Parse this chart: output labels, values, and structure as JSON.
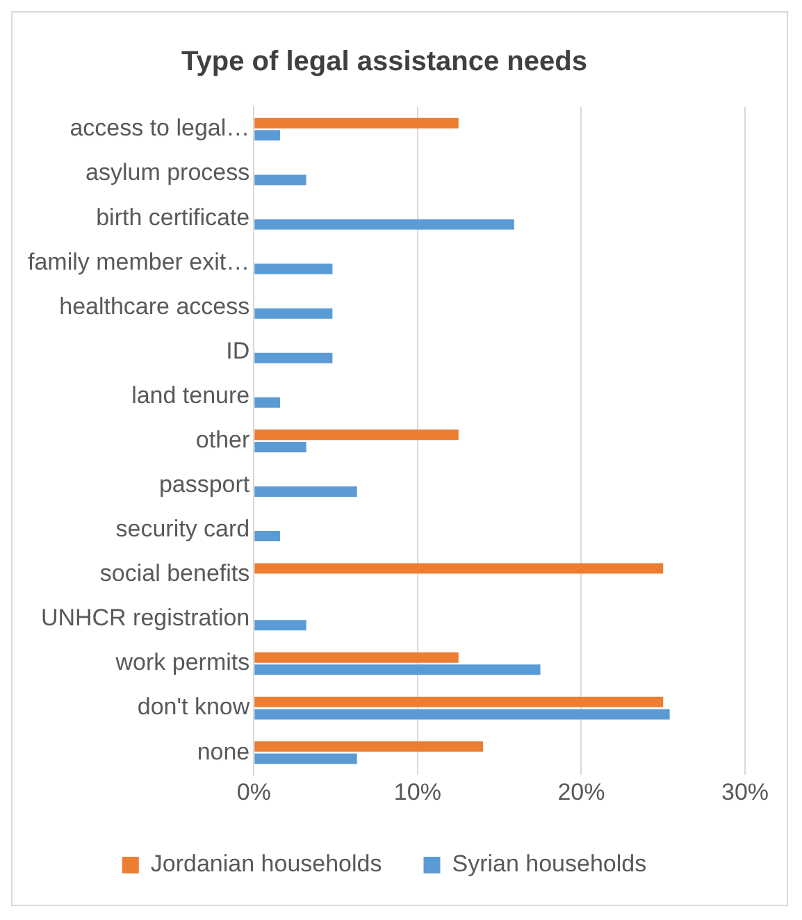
{
  "chart_data": {
    "type": "bar",
    "orientation": "horizontal",
    "title": "Type of legal assistance needs",
    "categories": [
      "access to legal…",
      "asylum process",
      "birth certificate",
      "family member exit…",
      "healthcare access",
      "ID",
      "land tenure",
      "other",
      "passport",
      "security card",
      "social benefits",
      "UNHCR registration",
      "work permits",
      "don't know",
      "none"
    ],
    "series": [
      {
        "name": "Jordanian households",
        "color": "#ed7d31",
        "values": [
          12.5,
          null,
          null,
          null,
          null,
          null,
          null,
          12.5,
          null,
          null,
          25,
          null,
          12.5,
          25,
          14
        ]
      },
      {
        "name": "Syrian households",
        "color": "#5b9bd5",
        "values": [
          1.6,
          3.2,
          15.9,
          4.8,
          4.8,
          4.8,
          1.6,
          3.2,
          6.3,
          1.6,
          null,
          3.2,
          17.5,
          25.4,
          6.3
        ]
      }
    ],
    "xlim": [
      0,
      30
    ],
    "xticks": [
      {
        "value": 0,
        "label": "0%"
      },
      {
        "value": 10,
        "label": "10%"
      },
      {
        "value": 20,
        "label": "20%"
      },
      {
        "value": 30,
        "label": "30%"
      }
    ],
    "grid": "x",
    "legend": "bottom"
  }
}
